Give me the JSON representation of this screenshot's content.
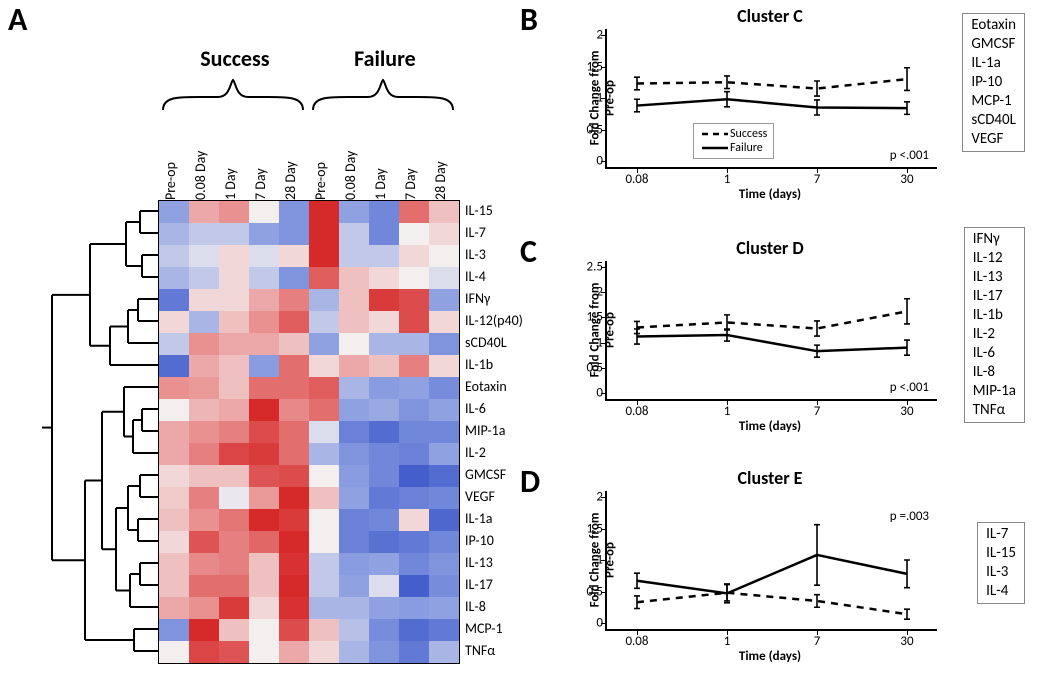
{
  "background_color": "#ffffff",
  "panelA": {
    "label": "A",
    "group_headers": [
      "Success",
      "Failure"
    ],
    "timepoints": [
      "Pre-op",
      "0.08 Day",
      "1 Day",
      "7 Day",
      "28 Day"
    ],
    "rows": [
      "IL-15",
      "IL-7",
      "IL-3",
      "IL-4",
      "IFNγ",
      "IL-12(p40)",
      "sCD40L",
      "IL-1b",
      "Eotaxin",
      "IL-6",
      "MIP-1a",
      "IL-2",
      "GMCSF",
      "VEGF",
      "IL-1a",
      "IP-10",
      "IL-13",
      "IL-17",
      "IL-8",
      "MCP-1",
      "TNFα"
    ],
    "color_scale": {
      "low": "#3552c8",
      "mid_low": "#8fa1e1",
      "mid": "#f4efef",
      "mid_high": "#e99090",
      "high": "#d62a2a"
    },
    "cells": [
      [
        0.3,
        0.65,
        0.7,
        0.5,
        0.25,
        1.0,
        0.3,
        0.2,
        0.8,
        0.6
      ],
      [
        0.35,
        0.4,
        0.4,
        0.3,
        0.25,
        1.0,
        0.4,
        0.2,
        0.5,
        0.55
      ],
      [
        0.4,
        0.45,
        0.55,
        0.45,
        0.55,
        1.0,
        0.4,
        0.4,
        0.55,
        0.5
      ],
      [
        0.35,
        0.4,
        0.55,
        0.4,
        0.25,
        0.85,
        0.6,
        0.55,
        0.5,
        0.45
      ],
      [
        0.15,
        0.55,
        0.55,
        0.65,
        0.75,
        0.35,
        0.6,
        0.95,
        0.9,
        0.3
      ],
      [
        0.55,
        0.35,
        0.6,
        0.7,
        0.85,
        0.4,
        0.6,
        0.55,
        0.9,
        0.55
      ],
      [
        0.4,
        0.7,
        0.65,
        0.65,
        0.6,
        0.3,
        0.5,
        0.35,
        0.35,
        0.25
      ],
      [
        0.1,
        0.65,
        0.6,
        0.28,
        0.8,
        0.55,
        0.65,
        0.6,
        0.75,
        0.55
      ],
      [
        0.7,
        0.68,
        0.6,
        0.8,
        0.8,
        0.85,
        0.35,
        0.28,
        0.3,
        0.22
      ],
      [
        0.5,
        0.62,
        0.65,
        1.0,
        0.72,
        0.8,
        0.3,
        0.32,
        0.25,
        0.3
      ],
      [
        0.65,
        0.7,
        0.75,
        0.9,
        0.8,
        0.45,
        0.18,
        0.1,
        0.2,
        0.2
      ],
      [
        0.65,
        0.75,
        0.92,
        0.95,
        0.8,
        0.35,
        0.25,
        0.2,
        0.18,
        0.3
      ],
      [
        0.55,
        0.6,
        0.6,
        0.88,
        0.9,
        0.5,
        0.28,
        0.2,
        0.05,
        0.1
      ],
      [
        0.58,
        0.75,
        0.48,
        0.68,
        1.0,
        0.6,
        0.3,
        0.15,
        0.18,
        0.2
      ],
      [
        0.6,
        0.7,
        0.78,
        1.0,
        0.95,
        0.5,
        0.18,
        0.2,
        0.55,
        0.08
      ],
      [
        0.55,
        0.88,
        0.75,
        0.82,
        1.0,
        0.5,
        0.18,
        0.12,
        0.15,
        0.2
      ],
      [
        0.6,
        0.72,
        0.75,
        0.6,
        0.98,
        0.4,
        0.28,
        0.3,
        0.2,
        0.25
      ],
      [
        0.6,
        0.8,
        0.8,
        0.6,
        1.0,
        0.4,
        0.3,
        0.45,
        0.05,
        0.22
      ],
      [
        0.65,
        0.7,
        0.95,
        0.55,
        0.98,
        0.35,
        0.35,
        0.3,
        0.28,
        0.3
      ],
      [
        0.25,
        1.0,
        0.6,
        0.5,
        0.9,
        0.6,
        0.38,
        0.22,
        0.1,
        0.15
      ],
      [
        0.5,
        0.92,
        0.88,
        0.5,
        0.65,
        0.55,
        0.35,
        0.25,
        0.15,
        0.35
      ]
    ],
    "dendrogram": {
      "stroke": "#000000",
      "stroke_width": 2
    }
  },
  "common_line": {
    "x_values": [
      0.08,
      1,
      7,
      30
    ],
    "x_labels": [
      "0.08",
      "1",
      "7",
      "30"
    ],
    "x_axis_label": "Time (days)",
    "y_axis_label": "Fold Change from\nPre-op",
    "line_color": "#000000",
    "line_width": 2.5,
    "success_style": "dashed",
    "failure_style": "solid",
    "dash_pattern": "7 6",
    "errorbar_cap": 6
  },
  "panelB": {
    "label": "B",
    "title": "Cluster C",
    "ylim": [
      0,
      2
    ],
    "ytick_step": 0.5,
    "p_text": "p <.001",
    "legend": true,
    "legend_items": [
      "Success",
      "Failure"
    ],
    "analytes": [
      "Eotaxin",
      "GMCSF",
      "IL-1a",
      "IP-10",
      "MCP-1",
      "sCD40L",
      "VEGF"
    ],
    "success": {
      "y": [
        1.23,
        1.25,
        1.15,
        1.3
      ],
      "err": [
        0.1,
        0.1,
        0.12,
        0.18
      ]
    },
    "failure": {
      "y": [
        0.88,
        0.98,
        0.85,
        0.84
      ],
      "err": [
        0.1,
        0.12,
        0.12,
        0.1
      ]
    }
  },
  "panelC": {
    "label": "C",
    "title": "Cluster D",
    "ylim": [
      0,
      2.5
    ],
    "ytick_step": 0.5,
    "p_text": "p <.001",
    "legend": false,
    "analytes": [
      "IFNγ",
      "IL-12",
      "IL-13",
      "IL-17",
      "IL-1b",
      "IL-2",
      "IL-6",
      "IL-8",
      "MIP-1a",
      "TNFα"
    ],
    "success": {
      "y": [
        1.3,
        1.4,
        1.28,
        1.62
      ],
      "err": [
        0.12,
        0.15,
        0.15,
        0.25
      ]
    },
    "failure": {
      "y": [
        1.12,
        1.15,
        0.83,
        0.9
      ],
      "err": [
        0.15,
        0.12,
        0.12,
        0.15
      ]
    }
  },
  "panelD": {
    "label": "D",
    "title": "Cluster E",
    "ylim": [
      0,
      2
    ],
    "ytick_step": 0.5,
    "p_text": "p =.003",
    "legend": false,
    "analytes": [
      "IL-7",
      "IL-15",
      "IL-3",
      "IL-4"
    ],
    "success": {
      "y": [
        0.33,
        0.48,
        0.35,
        0.14
      ],
      "err": [
        0.1,
        0.13,
        0.1,
        0.08
      ]
    },
    "failure": {
      "y": [
        0.67,
        0.47,
        1.08,
        0.78
      ],
      "err": [
        0.12,
        0.15,
        0.48,
        0.22
      ]
    }
  }
}
